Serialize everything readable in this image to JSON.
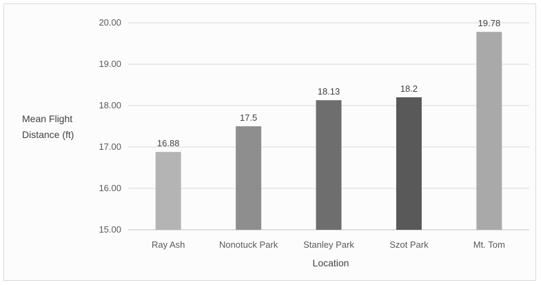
{
  "chart_data": {
    "type": "bar",
    "categories": [
      "Ray Ash",
      "Nonotuck Park",
      "Stanley Park",
      "Szot Park",
      "Mt. Tom"
    ],
    "values": [
      16.88,
      17.5,
      18.13,
      18.2,
      19.78
    ],
    "data_labels": [
      "16.88",
      "17.5",
      "18.13",
      "18.2",
      "19.78"
    ],
    "bar_colors": [
      "#b4b4b4",
      "#8e8e8e",
      "#6e6e6e",
      "#595959",
      "#a9a9a9"
    ],
    "ylabel_lines": [
      "Mean Flight",
      "Distance (ft)"
    ],
    "xlabel": "Location",
    "ylim": [
      15,
      20
    ],
    "yticks": [
      "15.00",
      "16.00",
      "17.00",
      "18.00",
      "19.00",
      "20.00"
    ],
    "grid": true
  }
}
